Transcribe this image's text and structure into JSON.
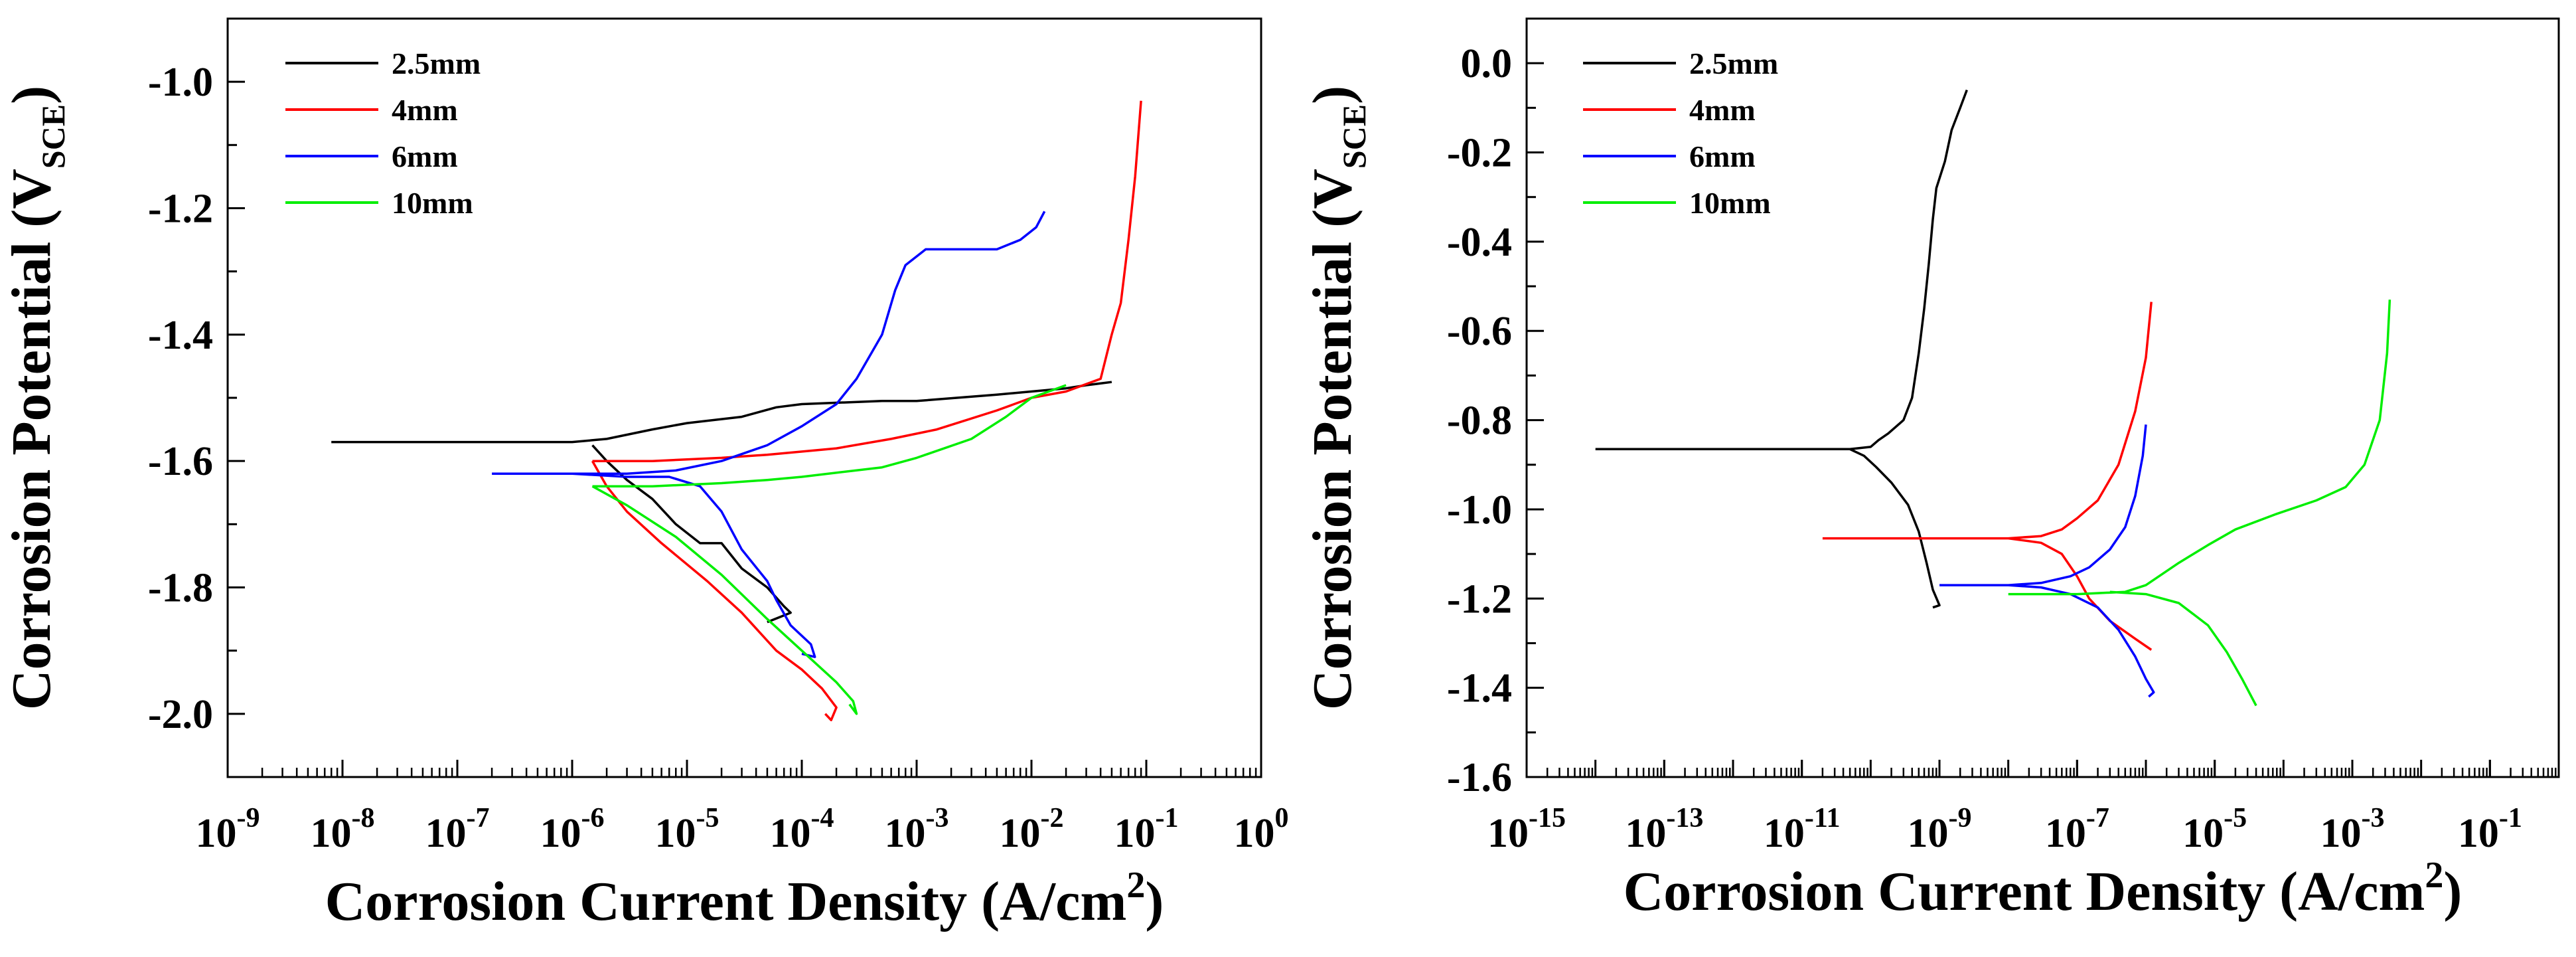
{
  "chart_data": [
    {
      "type": "line",
      "xscale": "log",
      "xlim": [
        1e-09,
        1
      ],
      "ylim": [
        -2.1,
        -0.9
      ],
      "xlabel": "Corrosion Current Density (A/cm²)",
      "ylabel": "Corrosion Potential (V_SCE)",
      "xtick_values": [
        1e-09,
        1e-08,
        1e-07,
        1e-06,
        1e-05,
        0.0001,
        0.001,
        0.01,
        0.1,
        1
      ],
      "xtick_labels": [
        {
          "base": "10",
          "exp": "-9"
        },
        {
          "base": "10",
          "exp": "-8"
        },
        {
          "base": "10",
          "exp": "-7"
        },
        {
          "base": "10",
          "exp": "-6"
        },
        {
          "base": "10",
          "exp": "-5"
        },
        {
          "base": "10",
          "exp": "-4"
        },
        {
          "base": "10",
          "exp": "-3"
        },
        {
          "base": "10",
          "exp": "-2"
        },
        {
          "base": "10",
          "exp": "-1"
        },
        {
          "base": "10",
          "exp": "0"
        }
      ],
      "ytick_values": [
        -2.0,
        -1.8,
        -1.6,
        -1.4,
        -1.2,
        -1.0
      ],
      "ytick_labels": [
        "-2.0",
        "-1.8",
        "-1.6",
        "-1.4",
        "-1.2",
        "-1.0"
      ],
      "legend_position": "top-left",
      "series": [
        {
          "name": "2.5mm",
          "color": "#000000",
          "points": [
            [
              8e-09,
              -1.57
            ],
            [
              1e-07,
              -1.57
            ],
            [
              5e-07,
              -1.57
            ],
            [
              1e-06,
              -1.57
            ],
            [
              2e-06,
              -1.565
            ],
            [
              5e-06,
              -1.55
            ],
            [
              1e-05,
              -1.54
            ],
            [
              3e-05,
              -1.53
            ],
            [
              6e-05,
              -1.515
            ],
            [
              0.0001,
              -1.51
            ],
            [
              0.0005,
              -1.505
            ],
            [
              0.001,
              -1.505
            ],
            [
              0.005,
              -1.495
            ],
            [
              0.01,
              -1.49
            ],
            [
              0.02,
              -1.485
            ],
            [
              0.03,
              -1.48
            ],
            [
              0.05,
              -1.475
            ],
            [
              null,
              null
            ],
            [
              1.5e-06,
              -1.575
            ],
            [
              2e-06,
              -1.6
            ],
            [
              3e-06,
              -1.63
            ],
            [
              5e-06,
              -1.66
            ],
            [
              8e-06,
              -1.7
            ],
            [
              1.3e-05,
              -1.73
            ],
            [
              2e-05,
              -1.73
            ],
            [
              3e-05,
              -1.77
            ],
            [
              5e-05,
              -1.8
            ],
            [
              7e-05,
              -1.83
            ],
            [
              8e-05,
              -1.84
            ],
            [
              5e-05,
              -1.855
            ]
          ]
        },
        {
          "name": "4mm",
          "color": "#ff0000",
          "points": [
            [
              1.5e-06,
              -1.6
            ],
            [
              5e-06,
              -1.6
            ],
            [
              2e-05,
              -1.595
            ],
            [
              5e-05,
              -1.59
            ],
            [
              0.0002,
              -1.58
            ],
            [
              0.0006,
              -1.565
            ],
            [
              0.0015,
              -1.55
            ],
            [
              0.005,
              -1.52
            ],
            [
              0.01,
              -1.5
            ],
            [
              0.02,
              -1.49
            ],
            [
              0.04,
              -1.47
            ],
            [
              0.05,
              -1.4
            ],
            [
              0.06,
              -1.35
            ],
            [
              0.07,
              -1.25
            ],
            [
              0.08,
              -1.15
            ],
            [
              0.09,
              -1.03
            ],
            [
              null,
              null
            ],
            [
              1.5e-06,
              -1.6
            ],
            [
              2e-06,
              -1.64
            ],
            [
              3e-06,
              -1.68
            ],
            [
              6e-06,
              -1.73
            ],
            [
              1.5e-05,
              -1.79
            ],
            [
              3e-05,
              -1.84
            ],
            [
              6e-05,
              -1.9
            ],
            [
              0.0001,
              -1.93
            ],
            [
              0.00015,
              -1.96
            ],
            [
              0.0002,
              -1.99
            ],
            [
              0.00018,
              -2.01
            ],
            [
              0.00016,
              -2.0
            ]
          ]
        },
        {
          "name": "6mm",
          "color": "#0000ff",
          "points": [
            [
              2e-07,
              -1.62
            ],
            [
              1e-06,
              -1.62
            ],
            [
              3e-06,
              -1.62
            ],
            [
              8e-06,
              -1.615
            ],
            [
              2e-05,
              -1.6
            ],
            [
              5e-05,
              -1.575
            ],
            [
              0.0001,
              -1.545
            ],
            [
              0.0002,
              -1.51
            ],
            [
              0.0003,
              -1.47
            ],
            [
              0.0005,
              -1.4
            ],
            [
              0.00065,
              -1.33
            ],
            [
              0.0008,
              -1.29
            ],
            [
              0.0012,
              -1.265
            ],
            [
              0.002,
              -1.265
            ],
            [
              0.005,
              -1.265
            ],
            [
              0.008,
              -1.25
            ],
            [
              0.011,
              -1.23
            ],
            [
              0.013,
              -1.205
            ],
            [
              null,
              null
            ],
            [
              1e-06,
              -1.62
            ],
            [
              3e-06,
              -1.625
            ],
            [
              7e-06,
              -1.625
            ],
            [
              1.3e-05,
              -1.64
            ],
            [
              2e-05,
              -1.68
            ],
            [
              3e-05,
              -1.74
            ],
            [
              5e-05,
              -1.79
            ],
            [
              6e-05,
              -1.82
            ],
            [
              8e-05,
              -1.86
            ],
            [
              0.00012,
              -1.89
            ],
            [
              0.00013,
              -1.91
            ],
            [
              0.0001,
              -1.905
            ]
          ]
        },
        {
          "name": "10mm",
          "color": "#00ee00",
          "points": [
            [
              1.5e-06,
              -1.64
            ],
            [
              5e-06,
              -1.64
            ],
            [
              2e-05,
              -1.635
            ],
            [
              5e-05,
              -1.63
            ],
            [
              0.0001,
              -1.625
            ],
            [
              0.0005,
              -1.61
            ],
            [
              0.001,
              -1.595
            ],
            [
              0.003,
              -1.565
            ],
            [
              0.006,
              -1.53
            ],
            [
              0.01,
              -1.5
            ],
            [
              0.02,
              -1.48
            ],
            [
              null,
              null
            ],
            [
              1.5e-06,
              -1.64
            ],
            [
              3e-06,
              -1.67
            ],
            [
              8e-06,
              -1.72
            ],
            [
              2e-05,
              -1.78
            ],
            [
              5e-05,
              -1.85
            ],
            [
              0.0001,
              -1.9
            ],
            [
              0.0002,
              -1.95
            ],
            [
              0.00028,
              -1.98
            ],
            [
              0.0003,
              -2.0
            ],
            [
              0.00026,
              -1.985
            ]
          ]
        }
      ]
    },
    {
      "type": "line",
      "xscale": "log",
      "xlim": [
        1e-15,
        1
      ],
      "ylim": [
        -1.6,
        0.1
      ],
      "xlabel": "Corrosion Current Density (A/cm²)",
      "ylabel": "Corrosion Potential (V_SCE)",
      "xtick_values": [
        1e-15,
        1e-13,
        1e-11,
        1e-09,
        1e-07,
        1e-05,
        0.001,
        0.1
      ],
      "xtick_labels": [
        {
          "base": "10",
          "exp": "-15"
        },
        {
          "base": "10",
          "exp": "-13"
        },
        {
          "base": "10",
          "exp": "-11"
        },
        {
          "base": "10",
          "exp": "-9"
        },
        {
          "base": "10",
          "exp": "-7"
        },
        {
          "base": "10",
          "exp": "-5"
        },
        {
          "base": "10",
          "exp": "-3"
        },
        {
          "base": "10",
          "exp": "-1"
        }
      ],
      "ytick_values": [
        -1.6,
        -1.4,
        -1.2,
        -1.0,
        -0.8,
        -0.6,
        -0.4,
        -0.2,
        0.0
      ],
      "ytick_labels": [
        "-1.6",
        "-1.4",
        "-1.2",
        "-1.0",
        "-0.8",
        "-0.6",
        "-0.4",
        "-0.2",
        "0.0"
      ],
      "legend_position": "top-left",
      "series": [
        {
          "name": "2.5mm",
          "color": "#000000",
          "points": [
            [
              1e-14,
              -0.865
            ],
            [
              1e-12,
              -0.865
            ],
            [
              5e-11,
              -0.865
            ],
            [
              1e-10,
              -0.86
            ],
            [
              1.3e-10,
              -0.845
            ],
            [
              1.8e-10,
              -0.83
            ],
            [
              3e-10,
              -0.8
            ],
            [
              4e-10,
              -0.75
            ],
            [
              5e-10,
              -0.65
            ],
            [
              6e-10,
              -0.55
            ],
            [
              7e-10,
              -0.45
            ],
            [
              8e-10,
              -0.35
            ],
            [
              9e-10,
              -0.28
            ],
            [
              1.2e-09,
              -0.22
            ],
            [
              1.5e-09,
              -0.15
            ],
            [
              2e-09,
              -0.1
            ],
            [
              2.5e-09,
              -0.06
            ],
            [
              null,
              null
            ],
            [
              5e-11,
              -0.865
            ],
            [
              8e-11,
              -0.88
            ],
            [
              1.2e-10,
              -0.905
            ],
            [
              2e-10,
              -0.94
            ],
            [
              3.5e-10,
              -0.99
            ],
            [
              5e-10,
              -1.05
            ],
            [
              6.5e-10,
              -1.12
            ],
            [
              8e-10,
              -1.18
            ],
            [
              1e-09,
              -1.215
            ],
            [
              8e-10,
              -1.22
            ]
          ]
        },
        {
          "name": "4mm",
          "color": "#ff0000",
          "points": [
            [
              2e-11,
              -1.065
            ],
            [
              1e-09,
              -1.065
            ],
            [
              1e-08,
              -1.065
            ],
            [
              3e-08,
              -1.06
            ],
            [
              6e-08,
              -1.045
            ],
            [
              1e-07,
              -1.02
            ],
            [
              2e-07,
              -0.98
            ],
            [
              4e-07,
              -0.9
            ],
            [
              7e-07,
              -0.78
            ],
            [
              1e-06,
              -0.66
            ],
            [
              1.2e-06,
              -0.535
            ],
            [
              null,
              null
            ],
            [
              1e-08,
              -1.065
            ],
            [
              3e-08,
              -1.075
            ],
            [
              6e-08,
              -1.1
            ],
            [
              1e-07,
              -1.15
            ],
            [
              1.5e-07,
              -1.2
            ],
            [
              3e-07,
              -1.25
            ],
            [
              7e-07,
              -1.29
            ],
            [
              1.2e-06,
              -1.315
            ]
          ]
        },
        {
          "name": "6mm",
          "color": "#0000ff",
          "points": [
            [
              1e-09,
              -1.17
            ],
            [
              1e-08,
              -1.17
            ],
            [
              3e-08,
              -1.165
            ],
            [
              8e-08,
              -1.15
            ],
            [
              1.5e-07,
              -1.13
            ],
            [
              3e-07,
              -1.09
            ],
            [
              5e-07,
              -1.04
            ],
            [
              7e-07,
              -0.97
            ],
            [
              9e-07,
              -0.88
            ],
            [
              1e-06,
              -0.81
            ],
            [
              null,
              null
            ],
            [
              1e-08,
              -1.17
            ],
            [
              3e-08,
              -1.175
            ],
            [
              8e-08,
              -1.19
            ],
            [
              2e-07,
              -1.22
            ],
            [
              4e-07,
              -1.27
            ],
            [
              7e-07,
              -1.33
            ],
            [
              1e-06,
              -1.38
            ],
            [
              1.3e-06,
              -1.41
            ],
            [
              1.1e-06,
              -1.42
            ]
          ]
        },
        {
          "name": "10mm",
          "color": "#00ee00",
          "points": [
            [
              1e-08,
              -1.19
            ],
            [
              1e-07,
              -1.19
            ],
            [
              5e-07,
              -1.185
            ],
            [
              1e-06,
              -1.17
            ],
            [
              3e-06,
              -1.12
            ],
            [
              8e-06,
              -1.08
            ],
            [
              2e-05,
              -1.045
            ],
            [
              8e-05,
              -1.01
            ],
            [
              0.0003,
              -0.98
            ],
            [
              0.0008,
              -0.95
            ],
            [
              0.0015,
              -0.9
            ],
            [
              0.0025,
              -0.8
            ],
            [
              0.0032,
              -0.65
            ],
            [
              0.0035,
              -0.53
            ],
            [
              null,
              null
            ],
            [
              3e-07,
              -1.185
            ],
            [
              1e-06,
              -1.19
            ],
            [
              3e-06,
              -1.21
            ],
            [
              8e-06,
              -1.26
            ],
            [
              1.5e-05,
              -1.32
            ],
            [
              2.5e-05,
              -1.38
            ],
            [
              4e-05,
              -1.44
            ]
          ]
        }
      ]
    }
  ]
}
